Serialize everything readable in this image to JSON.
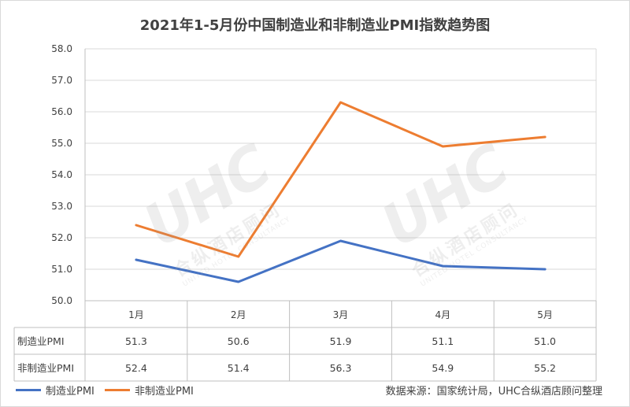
{
  "chart_data": {
    "type": "line",
    "title": "2021年1-5月份中国制造业和非制造业PMI指数趋势图",
    "categories": [
      "1月",
      "2月",
      "3月",
      "4月",
      "5月"
    ],
    "series": [
      {
        "name": "制造业PMI",
        "values": [
          51.3,
          50.6,
          51.9,
          51.1,
          51.0
        ],
        "color": "#4472c4"
      },
      {
        "name": "非制造业PMI",
        "values": [
          52.4,
          51.4,
          56.3,
          54.9,
          55.2
        ],
        "color": "#ed7d31"
      }
    ],
    "table_rows": [
      {
        "label": "制造业PMI",
        "cells": [
          "51.3",
          "50.6",
          "51.9",
          "51.1",
          "51.0"
        ]
      },
      {
        "label": "非制造业PMI",
        "cells": [
          "52.4",
          "51.4",
          "56.3",
          "54.9",
          "55.2"
        ]
      }
    ],
    "ylim": [
      50.0,
      58.0
    ],
    "yticks": [
      "50.0",
      "51.0",
      "52.0",
      "53.0",
      "54.0",
      "55.0",
      "56.0",
      "57.0",
      "58.0"
    ],
    "grid": true,
    "legend": "bottom-left",
    "source": "数据来源：国家统计局，UHC合纵酒店顾问整理"
  },
  "watermark": {
    "logo": "UHC",
    "cn": "合纵酒店顾问",
    "en": "UNITED HOTEL CONSULTANCY"
  },
  "colors": {
    "grid": "#d9d9d9",
    "axis": "#bfbfbf"
  }
}
